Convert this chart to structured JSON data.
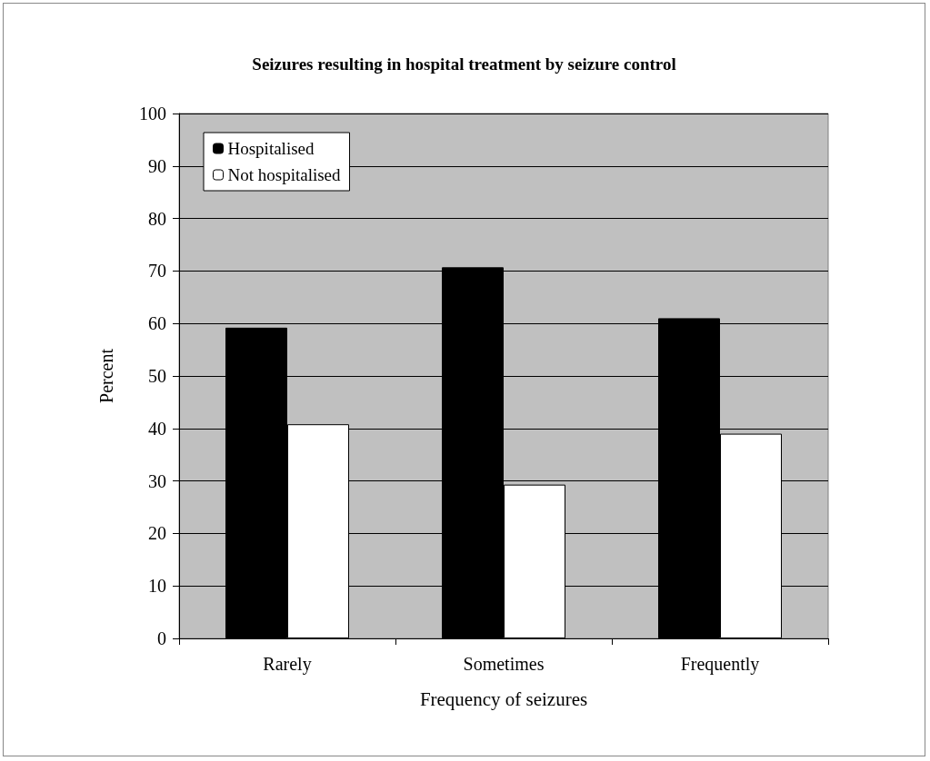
{
  "chart_data": {
    "type": "bar",
    "title": "Seizures resulting in hospital treatment by seizure control",
    "xlabel": "Frequency of seizures",
    "ylabel": "Percent",
    "categories": [
      "Rarely",
      "Sometimes",
      "Frequently"
    ],
    "series": [
      {
        "name": "Hospitalised",
        "color": "#000000",
        "values": [
          59.2,
          70.7,
          61.0
        ]
      },
      {
        "name": "Not hospitalised",
        "color": "#ffffff",
        "values": [
          40.8,
          29.3,
          39.0
        ]
      }
    ],
    "ylim": [
      0,
      100
    ],
    "yticks": [
      0,
      10,
      20,
      30,
      40,
      50,
      60,
      70,
      80,
      90,
      100
    ],
    "grid": "y",
    "legend": "top left"
  }
}
